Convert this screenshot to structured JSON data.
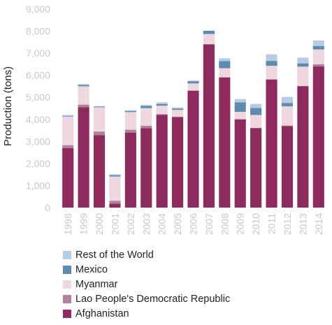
{
  "chart_data": {
    "type": "bar",
    "stacked": true,
    "ylabel": "Production (tons)",
    "xlabel": "",
    "ylim": [
      0,
      9000
    ],
    "yticks": [
      0,
      1000,
      2000,
      3000,
      4000,
      5000,
      6000,
      7000,
      8000,
      9000
    ],
    "ytick_labels": [
      "0",
      "1,000",
      "2,000",
      "3,000",
      "4,000",
      "5,000",
      "6,000",
      "7,000",
      "8,000",
      "9,000"
    ],
    "categories": [
      "1998",
      "1999",
      "2000",
      "2001",
      "2002",
      "2003",
      "2004",
      "2005",
      "2006",
      "2007",
      "2008",
      "2009",
      "2010",
      "2011",
      "2012",
      "2013",
      "2014"
    ],
    "series": [
      {
        "name": "Afghanistan",
        "color": "#8e2a5e",
        "values": [
          2700,
          4550,
          3280,
          180,
          3400,
          3600,
          4200,
          4100,
          5300,
          7400,
          5900,
          4000,
          3600,
          5800,
          3700,
          5500,
          6400
        ]
      },
      {
        "name": "Lao People's Democratic Republic",
        "color": "#ad8399",
        "values": [
          130,
          120,
          170,
          130,
          130,
          110,
          40,
          20,
          10,
          10,
          10,
          10,
          20,
          20,
          20,
          20,
          100
        ]
      },
      {
        "name": "Myanmar",
        "color": "#efd7df",
        "values": [
          1300,
          830,
          1100,
          1100,
          800,
          800,
          380,
          310,
          320,
          460,
          410,
          330,
          580,
          610,
          870,
          870,
          670
        ]
      },
      {
        "name": "Mexico",
        "color": "#5d8bb0",
        "values": [
          30,
          60,
          30,
          60,
          50,
          100,
          70,
          60,
          100,
          150,
          320,
          430,
          320,
          220,
          150,
          150,
          160
        ]
      },
      {
        "name": "Rest of the World",
        "color": "#b7cbe4",
        "values": [
          40,
          40,
          20,
          40,
          40,
          40,
          80,
          50,
          30,
          0,
          130,
          150,
          180,
          300,
          280,
          260,
          250
        ]
      }
    ],
    "legend_order": [
      "Rest of the World",
      "Mexico",
      "Myanmar",
      "Lao People's Democratic Republic",
      "Afghanistan"
    ],
    "legend_position": "bottom-left",
    "plot_background": "#ffffff",
    "grid": false
  }
}
